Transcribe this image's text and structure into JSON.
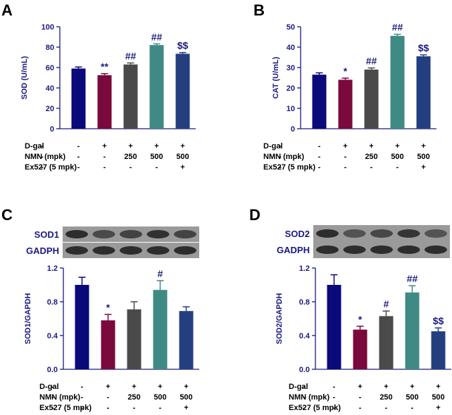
{
  "colors": [
    "#0a0a7a",
    "#7a0a3c",
    "#4a4a4a",
    "#3f8a84",
    "#243f80"
  ],
  "conditions": {
    "labels": [
      "D-gal",
      "NMN (mpk)",
      "Ex527 (5 mpk)"
    ],
    "rows": [
      [
        "-",
        "+",
        "+",
        "+",
        "+"
      ],
      [
        "-",
        "-",
        "250",
        "500",
        "500"
      ],
      [
        "-",
        "-",
        "-",
        "-",
        "+"
      ]
    ]
  },
  "chart_data": [
    {
      "panel": "A",
      "type": "bar",
      "ylabel": "SOD (U/mL)",
      "ylim": [
        0,
        100
      ],
      "yticks": [
        0,
        20,
        40,
        60,
        80,
        100
      ],
      "values": [
        59,
        52.5,
        63,
        82,
        73.5
      ],
      "errors": [
        1.5,
        1.5,
        1.5,
        1.2,
        1.2
      ],
      "significance": [
        "",
        "**",
        "##",
        "##",
        "$$"
      ]
    },
    {
      "panel": "B",
      "type": "bar",
      "ylabel": "CAT (U/mL)",
      "ylim": [
        0,
        50
      ],
      "yticks": [
        0,
        10,
        20,
        30,
        40,
        50
      ],
      "values": [
        26.5,
        24,
        29,
        45.5,
        35.5
      ],
      "errors": [
        0.9,
        0.8,
        0.8,
        0.8,
        0.7
      ],
      "significance": [
        "",
        "*",
        "##",
        "##",
        "$$"
      ]
    },
    {
      "panel": "C",
      "type": "bar",
      "ylabel": "SOD1/GAPDH",
      "blot_labels": [
        "SOD1",
        "GADPH"
      ],
      "ylim": [
        0,
        1.2
      ],
      "yticks": [
        "0.0",
        "0.4",
        "0.8",
        "1.2"
      ],
      "values": [
        1.0,
        0.58,
        0.71,
        0.94,
        0.69
      ],
      "errors": [
        0.09,
        0.07,
        0.09,
        0.11,
        0.05
      ],
      "significance": [
        "",
        "*",
        "",
        "#",
        ""
      ]
    },
    {
      "panel": "D",
      "type": "bar",
      "ylabel": "SOD2/GAPDH",
      "blot_labels": [
        "SOD2",
        "GADPH"
      ],
      "ylim": [
        0,
        1.2
      ],
      "yticks": [
        "0.0",
        "0.4",
        "0.8",
        "1.2"
      ],
      "values": [
        1.0,
        0.47,
        0.63,
        0.91,
        0.45
      ],
      "errors": [
        0.12,
        0.04,
        0.06,
        0.08,
        0.04
      ],
      "significance": [
        "",
        "*",
        "#",
        "##",
        "$$"
      ]
    }
  ]
}
